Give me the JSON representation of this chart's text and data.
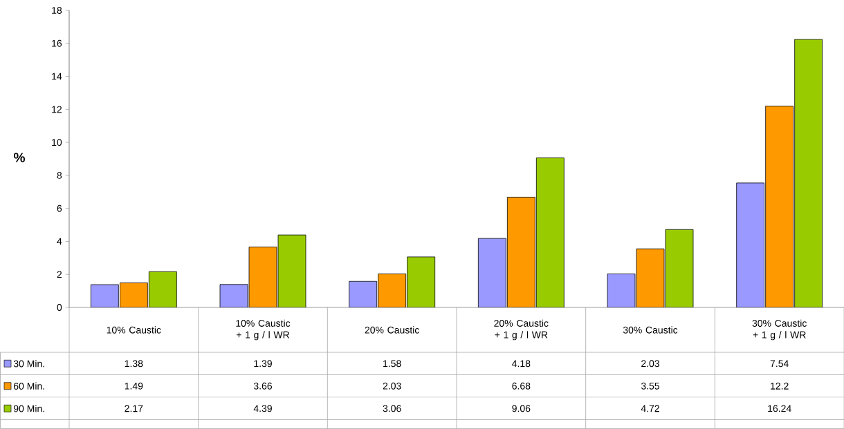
{
  "chart_data": {
    "type": "bar",
    "ylabel": "%",
    "categories": [
      "10% Caustic",
      "10% Caustic + 1 g / l WR",
      "20% Caustic",
      "20% Caustic + 1 g / l WR",
      "30% Caustic",
      "30% Caustic + 1 g / l WR"
    ],
    "series": [
      {
        "name": "30 Min.",
        "color": "#9999ff",
        "values": [
          1.38,
          1.39,
          1.58,
          4.18,
          2.03,
          7.54
        ]
      },
      {
        "name": "60 Min.",
        "color": "#ff9900",
        "values": [
          1.49,
          3.66,
          2.03,
          6.68,
          3.55,
          12.2
        ]
      },
      {
        "name": "90 Min.",
        "color": "#99cc00",
        "values": [
          2.17,
          4.39,
          3.06,
          9.06,
          4.72,
          16.24
        ]
      }
    ],
    "ylim": [
      0,
      18
    ],
    "yticks": [
      0,
      2,
      4,
      6,
      8,
      10,
      12,
      14,
      16,
      18
    ],
    "data_labels": true,
    "legend": "bottom left",
    "grid": false
  }
}
